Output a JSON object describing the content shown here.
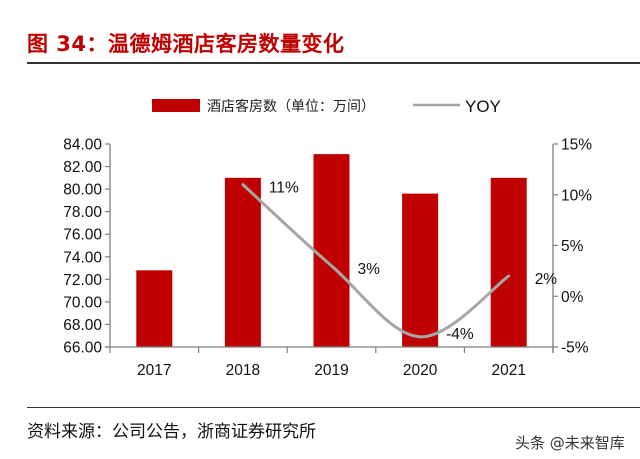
{
  "figure": {
    "title": "图 34：温德姆酒店客房数量变化",
    "source": "资料来源：公司公告，浙商证券研究所",
    "watermark": "头条 @未来智库"
  },
  "colors": {
    "bar": "#c00000",
    "line": "#a6a6a6",
    "title": "#c00000",
    "axis": "#7f7f7f"
  },
  "chart_data": {
    "type": "bar",
    "title": "图 34：温德姆酒店客房数量变化",
    "categories": [
      "2017",
      "2018",
      "2019",
      "2020",
      "2021"
    ],
    "series": [
      {
        "name": "酒店客房数（单位：万间）",
        "type": "bar",
        "axis": "left",
        "values": [
          72.8,
          81.0,
          83.1,
          79.6,
          81.0
        ]
      },
      {
        "name": "YOY",
        "type": "line",
        "axis": "right",
        "values": [
          null,
          11,
          3,
          -4,
          2
        ],
        "labels": [
          "",
          "11%",
          "3%",
          "-4%",
          "2%"
        ]
      }
    ],
    "left_axis": {
      "ylim": [
        66,
        84
      ],
      "ticks": [
        "66.00",
        "68.00",
        "70.00",
        "72.00",
        "74.00",
        "76.00",
        "78.00",
        "80.00",
        "82.00",
        "84.00"
      ]
    },
    "right_axis": {
      "ylim": [
        -5,
        15
      ],
      "ticks": [
        "-5%",
        "0%",
        "5%",
        "10%",
        "15%"
      ]
    },
    "legend": {
      "position": "top",
      "entries": [
        "酒店客房数（单位：万间）",
        "YOY"
      ]
    },
    "grid": false
  }
}
